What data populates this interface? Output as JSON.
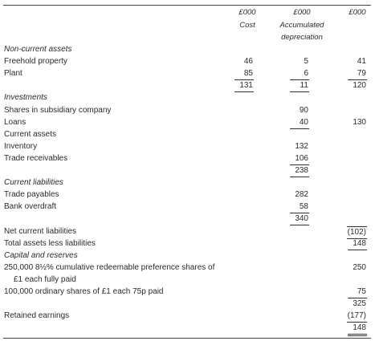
{
  "header": {
    "columns": [
      {
        "unit": "£000",
        "label": "Cost"
      },
      {
        "unit": "£000",
        "label": "Accumulated depreciation"
      },
      {
        "unit": "£000"
      }
    ]
  },
  "rows": [
    {
      "label": "Non-current assets"
    },
    {
      "label": "Freehold property",
      "cost": "46",
      "depreciation": "5",
      "net": "41"
    },
    {
      "label": "Plant",
      "cost": "85",
      "depreciation": "6",
      "net": "79"
    },
    {
      "cost": "131",
      "depreciation": "11",
      "net": "120"
    },
    {
      "label": "Investments"
    },
    {
      "label": "Shares in subsidiary company",
      "depreciation": "90"
    },
    {
      "label": "Loans",
      "depreciation": "40",
      "net": "130"
    },
    {
      "label": "Current assets"
    },
    {
      "label": "Inventory",
      "depreciation": "132"
    },
    {
      "label": "Trade receivables",
      "depreciation": "106"
    },
    {
      "depreciation": "238"
    },
    {
      "label": "Current liabilities"
    },
    {
      "label": "Trade payables",
      "depreciation": "282"
    },
    {
      "label": "Bank overdraft",
      "depreciation": "58"
    },
    {
      "depreciation": "340"
    },
    {
      "label": "Net current liabilities",
      "net": "(102)"
    },
    {
      "label": "Total assets less liabilities",
      "net": "148"
    },
    {
      "label": "Capital and reserves"
    },
    {
      "label": "250,000 8½% cumulative redeemable preference shares of",
      "net": "250"
    },
    {
      "label": "£1 each fully paid"
    },
    {
      "label": "100,000 ordinary shares of £1 each 75p paid",
      "net": "75"
    },
    {
      "net": "325"
    },
    {
      "label": "Retained earnings",
      "net": "(177)"
    },
    {
      "net": "148"
    }
  ]
}
